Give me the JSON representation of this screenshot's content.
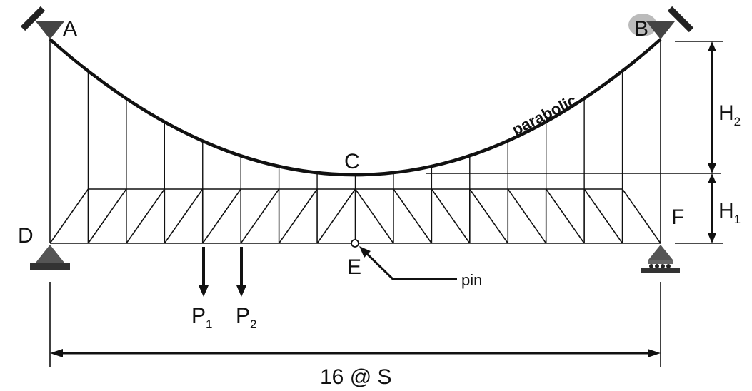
{
  "diagram": {
    "labels": {
      "A": "A",
      "B": "B",
      "C": "C",
      "D": "D",
      "E": "E",
      "F": "F",
      "pin": "pin",
      "curve": "parabolic",
      "P1": "P",
      "P1_sub": "1",
      "P2": "P",
      "P2_sub": "2",
      "H2": "H",
      "H2_sub": "2",
      "H1": "H",
      "H1_sub": "1",
      "span": "16 @ S"
    },
    "panels": 16,
    "icons": [
      "support-icon",
      "roller-support-icon",
      "pin-icon",
      "arrow-icon"
    ],
    "colors": {
      "line": "#111111",
      "support": "#555555",
      "background": "#ffffff"
    }
  }
}
